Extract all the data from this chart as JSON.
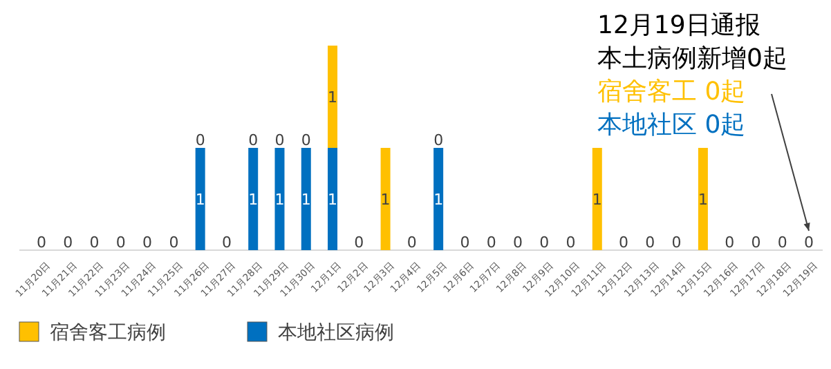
{
  "chart_data": {
    "type": "bar",
    "stacked": true,
    "legend": "bottom left",
    "tick_labels": "x",
    "categories": [
      "11月20日",
      "11月21日",
      "11月22日",
      "11月23日",
      "11月24日",
      "11月25日",
      "11月26日",
      "11月27日",
      "11月28日",
      "11月29日",
      "11月30日",
      "12月1日",
      "12月2日",
      "12月3日",
      "12月4日",
      "12月5日",
      "12月6日",
      "12月7日",
      "12月8日",
      "12月9日",
      "12月10日",
      "12月11日",
      "12月12日",
      "12月13日",
      "12月14日",
      "12月15日",
      "12月16日",
      "12月17日",
      "12月18日",
      "12月19日"
    ],
    "series": [
      {
        "name": "本地社区病例",
        "color": "#0070c0",
        "values": [
          0,
          0,
          0,
          0,
          0,
          0,
          1,
          0,
          1,
          1,
          1,
          1,
          0,
          0,
          0,
          1,
          0,
          0,
          0,
          0,
          0,
          0,
          0,
          0,
          0,
          0,
          0,
          0,
          0,
          0
        ],
        "value_labels": [
          "0",
          "0",
          "0",
          "0",
          "0",
          "0",
          "1",
          "0",
          "1",
          "1",
          "1",
          "1",
          "0",
          null,
          "0",
          "1",
          "0",
          "0",
          "0",
          "0",
          "0",
          null,
          "0",
          "0",
          "0",
          null,
          "0",
          "0",
          "0",
          "0"
        ]
      },
      {
        "name": "宿舍客工病例",
        "color": "#ffc000",
        "values": [
          0,
          0,
          0,
          0,
          0,
          0,
          0,
          0,
          0,
          0,
          0,
          1,
          0,
          1,
          0,
          0,
          0,
          0,
          0,
          0,
          0,
          1,
          0,
          0,
          0,
          1,
          0,
          0,
          0,
          0
        ],
        "value_labels": [
          null,
          null,
          null,
          null,
          null,
          null,
          "0",
          null,
          "0",
          "0",
          "0",
          "1",
          null,
          "1",
          null,
          "0",
          null,
          null,
          null,
          null,
          null,
          "1",
          null,
          null,
          null,
          "1",
          null,
          null,
          null,
          null
        ]
      }
    ],
    "annotations": [
      "12月19日通报",
      "本土病例新增0起",
      "宿舍客工 0起",
      "本地社区 0起"
    ]
  }
}
